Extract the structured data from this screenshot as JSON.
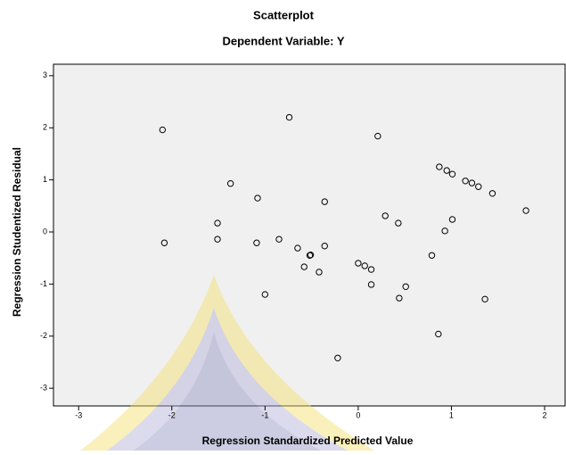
{
  "chart_data": {
    "type": "scatter",
    "title": "Scatterplot",
    "subtitle": "Dependent Variable: Y",
    "x_label": "Regression Standardized Predicted Value",
    "y_label": "Regression Studentized Residual",
    "x": [
      -2.1,
      -2.08,
      -1.51,
      -1.51,
      -1.37,
      -1.08,
      -1.09,
      -1.0,
      -0.85,
      -0.74,
      -0.65,
      -0.58,
      -0.52,
      -0.51,
      -0.36,
      -0.36,
      -0.42,
      -0.22,
      0.0,
      0.07,
      0.14,
      0.14,
      0.21,
      0.29,
      0.43,
      0.44,
      0.51,
      0.79,
      0.87,
      0.95,
      0.86,
      0.93,
      1.01,
      1.01,
      1.15,
      1.22,
      1.29,
      1.36,
      1.44,
      1.8
    ],
    "values": [
      1.96,
      -0.21,
      0.17,
      -0.14,
      0.93,
      0.65,
      -0.21,
      -1.2,
      -0.14,
      2.2,
      -0.31,
      -0.67,
      -0.45,
      -0.44,
      0.58,
      -0.27,
      -0.77,
      -2.42,
      -0.6,
      -0.65,
      -0.72,
      -1.01,
      1.84,
      0.31,
      0.17,
      -1.27,
      -1.05,
      -0.45,
      1.25,
      1.18,
      -1.96,
      0.02,
      1.11,
      0.24,
      0.98,
      0.94,
      0.87,
      -1.29,
      0.74,
      0.41
    ],
    "color": "#000000",
    "xlim": [
      -3.27,
      2.22
    ],
    "ylim": [
      -3.34,
      3.22
    ],
    "xticks": [
      -3,
      -2,
      -1,
      0,
      1,
      2
    ],
    "yticks": [
      -3,
      -2,
      -1,
      0,
      1,
      2,
      3
    ]
  }
}
